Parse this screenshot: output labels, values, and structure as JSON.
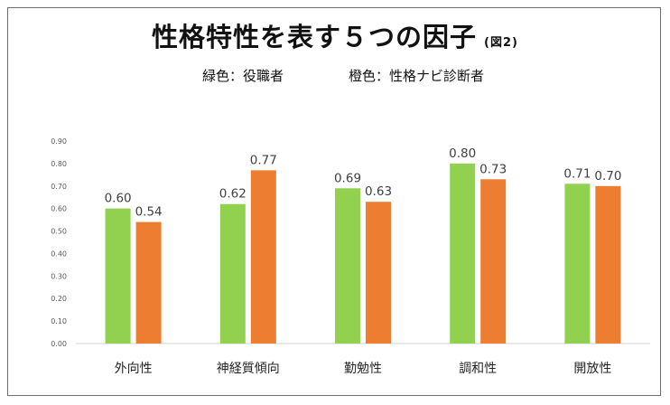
{
  "chart_data": {
    "type": "bar",
    "title": "性格特性を表す５つの因子",
    "figure_label": "(図2)",
    "legend": {
      "green": "緑色：役職者",
      "orange": "橙色：性格ナビ診断者"
    },
    "categories": [
      "外向性",
      "神経質傾向",
      "勤勉性",
      "調和性",
      "開放性"
    ],
    "series": [
      {
        "name": "役職者",
        "color": "#92d050",
        "values": [
          0.6,
          0.62,
          0.69,
          0.8,
          0.71
        ]
      },
      {
        "name": "性格ナビ診断者",
        "color": "#ed7d31",
        "values": [
          0.54,
          0.77,
          0.63,
          0.73,
          0.7
        ]
      }
    ],
    "y_ticks": [
      "0.00",
      "0.10",
      "0.20",
      "0.30",
      "0.40",
      "0.50",
      "0.60",
      "0.70",
      "0.80",
      "0.90"
    ],
    "ylim": [
      0,
      0.9
    ],
    "xlabel": "",
    "ylabel": ""
  }
}
